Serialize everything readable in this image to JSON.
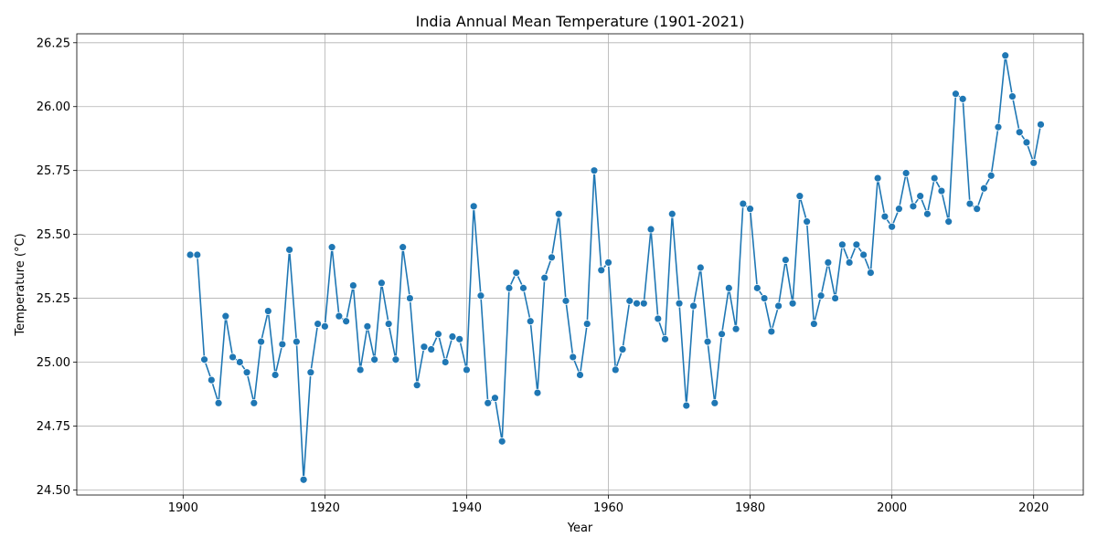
{
  "chart_data": {
    "type": "line",
    "title": "India Annual Mean Temperature (1901-2021)",
    "xlabel": "Year",
    "ylabel": "Temperature (°C)",
    "xlim": [
      1885,
      2027
    ],
    "ylim": [
      24.48,
      26.285
    ],
    "xticks": [
      1900,
      1920,
      1940,
      1960,
      1980,
      2000,
      2020
    ],
    "yticks": [
      24.5,
      24.75,
      25.0,
      25.25,
      25.5,
      25.75,
      26.0,
      26.25
    ],
    "ytick_labels": [
      "24.50",
      "24.75",
      "25.00",
      "25.25",
      "25.50",
      "25.75",
      "26.00",
      "26.25"
    ],
    "grid": true,
    "line_color": "#1f77b4",
    "marker": "circle",
    "x": [
      1901,
      1902,
      1903,
      1904,
      1905,
      1906,
      1907,
      1908,
      1909,
      1910,
      1911,
      1912,
      1913,
      1914,
      1915,
      1916,
      1917,
      1918,
      1919,
      1920,
      1921,
      1922,
      1923,
      1924,
      1925,
      1926,
      1927,
      1928,
      1929,
      1930,
      1931,
      1932,
      1933,
      1934,
      1935,
      1936,
      1937,
      1938,
      1939,
      1940,
      1941,
      1942,
      1943,
      1944,
      1945,
      1946,
      1947,
      1948,
      1949,
      1950,
      1951,
      1952,
      1953,
      1954,
      1955,
      1956,
      1957,
      1958,
      1959,
      1960,
      1961,
      1962,
      1963,
      1964,
      1965,
      1966,
      1967,
      1968,
      1969,
      1970,
      1971,
      1972,
      1973,
      1974,
      1975,
      1976,
      1977,
      1978,
      1979,
      1980,
      1981,
      1982,
      1983,
      1984,
      1985,
      1986,
      1987,
      1988,
      1989,
      1990,
      1991,
      1992,
      1993,
      1994,
      1995,
      1996,
      1997,
      1998,
      1999,
      2000,
      2001,
      2002,
      2003,
      2004,
      2005,
      2006,
      2007,
      2008,
      2009,
      2010,
      2011,
      2012,
      2013,
      2014,
      2015,
      2016,
      2017,
      2018,
      2019,
      2020,
      2021
    ],
    "y": [
      25.42,
      25.42,
      25.01,
      24.93,
      24.84,
      25.18,
      25.02,
      25.0,
      24.96,
      24.84,
      25.08,
      25.2,
      24.95,
      25.07,
      25.44,
      25.08,
      24.54,
      24.96,
      25.15,
      25.14,
      25.45,
      25.18,
      25.16,
      25.3,
      24.97,
      25.14,
      25.01,
      25.31,
      25.15,
      25.01,
      25.45,
      25.25,
      24.91,
      25.06,
      25.05,
      25.11,
      25.0,
      25.1,
      25.09,
      24.97,
      25.61,
      25.26,
      24.84,
      24.86,
      24.69,
      25.29,
      25.35,
      25.29,
      25.16,
      24.88,
      25.33,
      25.41,
      25.58,
      25.24,
      25.02,
      24.95,
      25.15,
      25.75,
      25.36,
      25.39,
      24.97,
      25.05,
      25.24,
      25.23,
      25.23,
      25.52,
      25.17,
      25.09,
      25.58,
      25.23,
      24.83,
      25.22,
      25.37,
      25.08,
      24.84,
      25.11,
      25.29,
      25.13,
      25.62,
      25.6,
      25.29,
      25.25,
      25.12,
      25.22,
      25.4,
      25.23,
      25.65,
      25.55,
      25.15,
      25.26,
      25.39,
      25.25,
      25.46,
      25.39,
      25.46,
      25.42,
      25.35,
      25.72,
      25.57,
      25.53,
      25.6,
      25.74,
      25.61,
      25.65,
      25.58,
      25.72,
      25.67,
      25.55,
      26.05,
      26.03,
      25.62,
      25.6,
      25.68,
      25.73,
      25.92,
      26.2,
      26.04,
      25.9,
      25.86,
      25.78,
      25.93
    ]
  }
}
